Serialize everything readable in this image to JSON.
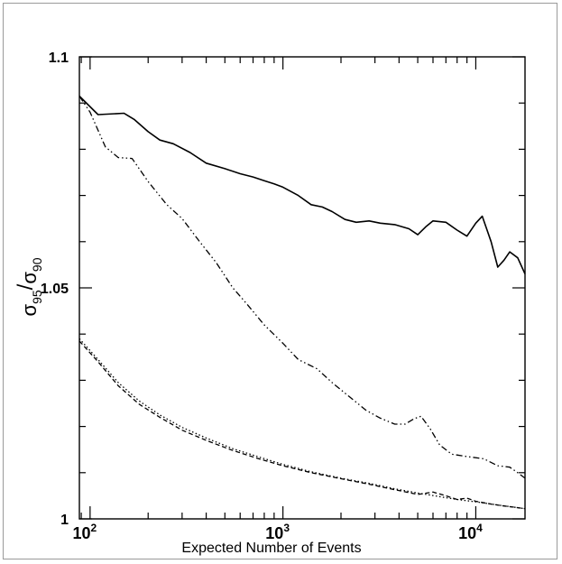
{
  "chart_data": {
    "type": "line",
    "xscale": "log",
    "xlim": [
      88,
      18000
    ],
    "ylim": [
      1.0,
      1.1
    ],
    "xlabel": "Expected Number of Events",
    "ylabel": {
      "base": "σ",
      "num_sub": "95",
      "sep": "/",
      "den_base": "σ",
      "den_sub": "90"
    },
    "y_ticks": [
      {
        "value": 1.0,
        "label": "1"
      },
      {
        "value": 1.05,
        "label": "1.05"
      },
      {
        "value": 1.1,
        "label": "1.1"
      }
    ],
    "x_ticks": [
      {
        "value": 100,
        "base": "10",
        "exp": "2"
      },
      {
        "value": 1000,
        "base": "10",
        "exp": "3"
      },
      {
        "value": 10000,
        "base": "10",
        "exp": "4"
      }
    ],
    "grid": false,
    "series": [
      {
        "style": "solid",
        "x": [
          88,
          110,
          150,
          170,
          200,
          230,
          270,
          330,
          400,
          500,
          600,
          700,
          800,
          900,
          1000,
          1200,
          1400,
          1600,
          1800,
          2100,
          2400,
          2800,
          3200,
          3800,
          4500,
          5000,
          5500,
          6000,
          7000,
          8000,
          9000,
          10000,
          10800,
          12000,
          13000,
          14000,
          15000,
          16500,
          18000
        ],
        "values": [
          1.0915,
          1.0875,
          1.0878,
          1.0864,
          1.0838,
          1.082,
          1.0812,
          1.0793,
          1.077,
          1.0758,
          1.0747,
          1.074,
          1.0732,
          1.0725,
          1.0718,
          1.07,
          1.068,
          1.0675,
          1.0665,
          1.0648,
          1.0642,
          1.0645,
          1.064,
          1.0637,
          1.0628,
          1.0615,
          1.0632,
          1.0645,
          1.0642,
          1.0625,
          1.0612,
          1.064,
          1.0655,
          1.06,
          1.0545,
          1.056,
          1.0578,
          1.0565,
          1.053
        ]
      },
      {
        "style": "dash-dot-dot",
        "x": [
          88,
          100,
          120,
          140,
          165,
          200,
          250,
          300,
          370,
          450,
          550,
          650,
          800,
          1000,
          1200,
          1500,
          1800,
          2200,
          2700,
          3200,
          3800,
          4300,
          4800,
          5200,
          5800,
          6500,
          7500,
          9000,
          11000,
          13000,
          15000,
          16500,
          18000
        ],
        "values": [
          1.0915,
          1.088,
          1.0805,
          1.0782,
          1.078,
          1.073,
          1.068,
          1.065,
          1.06,
          1.0555,
          1.05,
          1.0465,
          1.042,
          1.038,
          1.0345,
          1.0325,
          1.0295,
          1.0265,
          1.0235,
          1.0218,
          1.0205,
          1.0205,
          1.0217,
          1.0222,
          1.0195,
          1.016,
          1.014,
          1.0135,
          1.013,
          1.0115,
          1.0112,
          1.01,
          1.0088
        ]
      },
      {
        "style": "dotted",
        "x": [
          88,
          110,
          140,
          180,
          230,
          300,
          400,
          550,
          750,
          1000,
          1400,
          2000,
          2800,
          3800,
          5000,
          6500,
          8000,
          10000,
          13000,
          16000,
          18000
        ],
        "values": [
          1.039,
          1.0345,
          1.0295,
          1.0255,
          1.0225,
          1.0198,
          1.0175,
          1.0152,
          1.0134,
          1.0118,
          1.0102,
          1.0088,
          1.0077,
          1.0065,
          1.0056,
          1.0048,
          1.0042,
          1.0037,
          1.003,
          1.0025,
          1.0022
        ]
      },
      {
        "style": "dashed",
        "x": [
          88,
          110,
          140,
          180,
          230,
          300,
          400,
          550,
          750,
          1000,
          1400,
          2000,
          2800,
          3800,
          5000,
          6000,
          7000,
          8000,
          9000,
          10000,
          12000,
          14000,
          16000,
          18000
        ],
        "values": [
          1.0385,
          1.034,
          1.0288,
          1.0248,
          1.022,
          1.0192,
          1.017,
          1.0148,
          1.013,
          1.0115,
          1.01,
          1.0087,
          1.0075,
          1.0063,
          1.0053,
          1.0058,
          1.005,
          1.0042,
          1.0045,
          1.0038,
          1.0032,
          1.0028,
          1.0025,
          1.0022
        ]
      }
    ]
  }
}
